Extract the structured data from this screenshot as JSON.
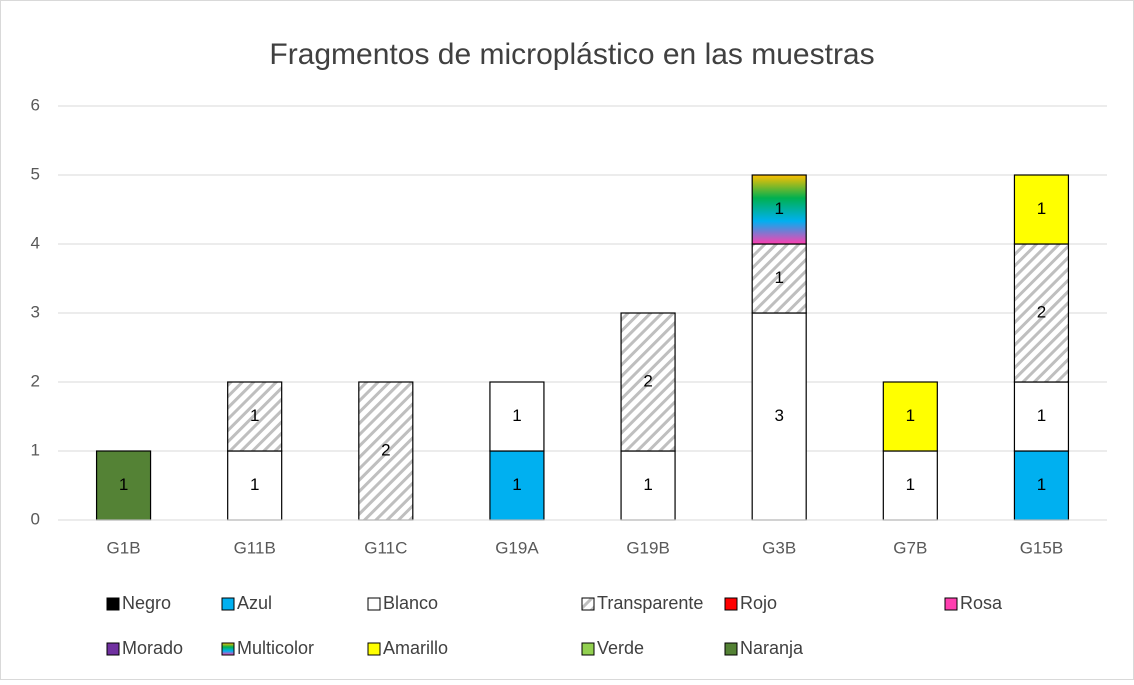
{
  "chart_data": {
    "type": "stacked_bar",
    "title": "Fragmentos de microplástico en las muestras",
    "categories": [
      "G1B",
      "G11B",
      "G11C",
      "G19A",
      "G19B",
      "G3B",
      "G7B",
      "G15B"
    ],
    "series": [
      {
        "name": "Negro",
        "color": "#000000",
        "values": [
          null,
          null,
          null,
          null,
          null,
          null,
          null,
          null
        ]
      },
      {
        "name": "Azul",
        "color": "#00b0f0",
        "values": [
          null,
          null,
          null,
          1,
          null,
          null,
          null,
          1
        ]
      },
      {
        "name": "Blanco",
        "color": "#ffffff",
        "values": [
          null,
          1,
          null,
          1,
          1,
          3,
          1,
          1
        ]
      },
      {
        "name": "Transparente",
        "color": "#bfbfbf",
        "pattern": "hatch",
        "values": [
          null,
          1,
          2,
          null,
          2,
          1,
          null,
          2
        ]
      },
      {
        "name": "Rojo",
        "color": "#ff0000",
        "values": [
          null,
          null,
          null,
          null,
          null,
          null,
          null,
          null
        ]
      },
      {
        "name": "Rosa",
        "color": "#ff3fb0",
        "values": [
          null,
          null,
          null,
          null,
          null,
          null,
          null,
          null
        ]
      },
      {
        "name": "Morado",
        "color": "#7030a0",
        "values": [
          null,
          null,
          null,
          null,
          null,
          null,
          null,
          null
        ]
      },
      {
        "name": "Multicolor",
        "color": [
          "#ff3fb0",
          "#00b0f0",
          "#00b050",
          "#ffc000"
        ],
        "values": [
          null,
          null,
          null,
          null,
          null,
          1,
          null,
          null
        ]
      },
      {
        "name": "Amarillo",
        "color": "#ffff00",
        "values": [
          null,
          null,
          null,
          null,
          null,
          null,
          1,
          1
        ]
      },
      {
        "name": "Verde",
        "color": "#92d050",
        "values": [
          null,
          null,
          null,
          null,
          null,
          null,
          null,
          null
        ]
      },
      {
        "name": "Naranja",
        "color": "#548235",
        "values": [
          1,
          null,
          null,
          null,
          null,
          null,
          null,
          null
        ]
      }
    ],
    "ylim": [
      0,
      6
    ],
    "yticks": [
      0,
      1,
      2,
      3,
      4,
      5,
      6
    ],
    "grid": true,
    "legend": "bottom"
  }
}
